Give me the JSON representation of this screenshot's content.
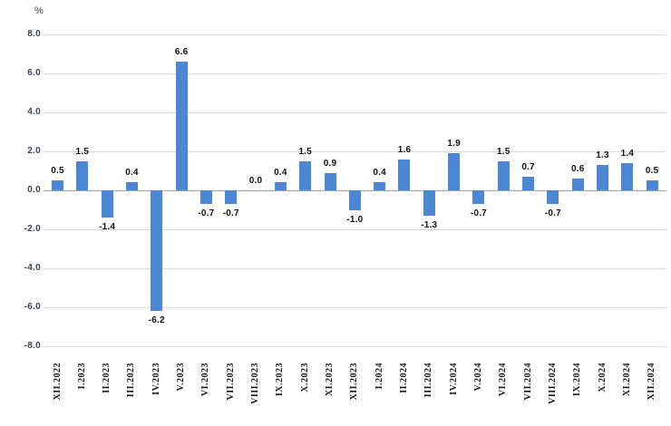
{
  "chart": {
    "unit_label": "%",
    "colors": {
      "bar": "#4e87d1",
      "grid": "#dadada",
      "zero_line": "#a3a3a3",
      "value_label": "#111111",
      "axis_label": "#3d4653"
    }
  },
  "chart_data": {
    "type": "bar",
    "title": "",
    "xlabel": "",
    "ylabel": "%",
    "grid": true,
    "legend_position": "none",
    "ylim": [
      -8.0,
      8.0
    ],
    "yticks": [
      8.0,
      6.0,
      4.0,
      2.0,
      0.0,
      -2.0,
      -4.0,
      -6.0,
      -8.0
    ],
    "ytick_labels": [
      "8.0",
      "6.0",
      "4.0",
      "2.0",
      "0.0",
      "-2.0",
      "-4.0",
      "-6.0",
      "-8.0"
    ],
    "categories": [
      "XII.2022",
      "I.2023",
      "II.2023",
      "III.2023",
      "IV.2023",
      "V.2023",
      "VI.2023",
      "VII.2023",
      "VIII.2023",
      "IX.2023",
      "X.2023",
      "XI.2023",
      "XII.2023",
      "I.2024",
      "II.2024",
      "III.2024",
      "IV.2024",
      "V.2024",
      "VI.2024",
      "VII.2024",
      "VIII.2024",
      "IX.2024",
      "X.2024",
      "XI.2024",
      "XII.2024"
    ],
    "values": [
      0.5,
      1.5,
      -1.4,
      0.4,
      -6.2,
      6.6,
      -0.7,
      -0.7,
      0.0,
      0.4,
      1.5,
      0.9,
      -1.0,
      0.4,
      1.6,
      -1.3,
      1.9,
      -0.7,
      1.5,
      0.7,
      -0.7,
      0.6,
      1.3,
      1.4,
      0.5
    ],
    "value_label_texts": [
      "0.5",
      "1.5",
      "-1.4",
      "0.4",
      "-6.2",
      "6.6",
      "-0.7",
      "-0.7",
      "0.0",
      "0.4",
      "1.5",
      "0.9",
      "-1.0",
      "0.4",
      "1.6",
      "-1.3",
      "1.9",
      "-0.7",
      "1.5",
      "0.7",
      "-0.7",
      "0.6",
      "1.3",
      "1.4",
      "0.5"
    ]
  }
}
